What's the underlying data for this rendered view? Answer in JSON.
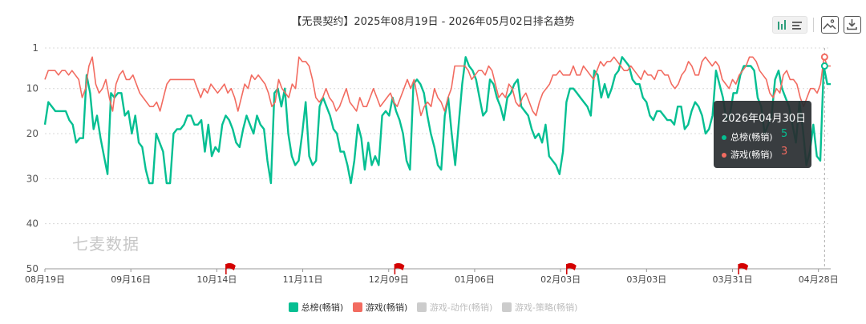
{
  "title": "【无畏契约】2025年08月19日 - 2026年05月02日排名趋势",
  "toolbar": {
    "icons": [
      "bar-view-icon",
      "image-export-icon",
      "download-icon"
    ]
  },
  "watermark": "七麦数据",
  "tooltip": {
    "date": "2026年04月30日",
    "rows": [
      {
        "label": "总榜(畅销)",
        "value": "5",
        "color": "#05bf92"
      },
      {
        "label": "游戏(畅销)",
        "value": "3",
        "color": "#f26b60"
      }
    ]
  },
  "chart_data": {
    "type": "line",
    "y_inverted": true,
    "ylim": [
      1,
      50
    ],
    "yticks": [
      "1",
      "10",
      "20",
      "30",
      "40",
      "50"
    ],
    "x_tick_labels": [
      "08月19日",
      "09月16日",
      "10月14日",
      "11月11日",
      "12月09日",
      "01月06日",
      "02月03日",
      "03月03日",
      "03月31日",
      "04月28日"
    ],
    "x_range": [
      "2025-08-19",
      "2026-05-02"
    ],
    "flags": [
      "2025-10-17",
      "2025-12-11",
      "2026-02-05",
      "2026-04-02"
    ],
    "grid": "dashed horizontal",
    "series": [
      {
        "name": "总榜(畅销)",
        "color": "#05bf92",
        "legend_active": true,
        "approximate_trend": [
          18,
          13,
          14,
          15,
          15,
          15,
          15,
          17,
          18,
          22,
          21,
          21,
          7,
          11,
          19,
          16,
          21,
          25,
          29,
          11,
          12,
          11,
          11,
          16,
          15,
          20,
          16,
          22,
          23,
          28,
          31,
          31,
          20,
          22,
          24,
          31,
          31,
          20,
          19,
          19,
          18,
          16,
          16,
          18,
          18,
          17,
          24,
          18,
          25,
          23,
          24,
          18,
          16,
          17,
          19,
          22,
          23,
          19,
          16,
          18,
          20,
          16,
          18,
          19,
          26,
          31,
          11,
          10,
          14,
          10,
          20,
          25,
          27,
          26,
          20,
          13,
          25,
          27,
          26,
          14,
          12,
          14,
          16,
          19,
          20,
          24,
          24,
          27,
          31,
          26,
          18,
          21,
          28,
          22,
          27,
          25,
          27,
          16,
          15,
          16,
          12,
          15,
          17,
          20,
          26,
          28,
          9,
          8,
          9,
          11,
          16,
          20,
          23,
          27,
          28,
          16,
          12,
          20,
          27,
          18,
          9,
          3,
          5,
          6,
          8,
          12,
          16,
          15,
          8,
          9,
          12,
          14,
          17,
          12,
          11,
          9,
          8,
          14,
          15,
          16,
          19,
          21,
          20,
          22,
          18,
          25,
          26,
          27,
          29,
          24,
          13,
          10,
          10,
          11,
          12,
          13,
          14,
          16,
          6,
          7,
          12,
          9,
          12,
          10,
          7,
          6,
          3,
          4,
          5,
          8,
          9,
          9,
          12,
          13,
          16,
          17,
          15,
          15,
          16,
          17,
          17,
          18,
          14,
          14,
          19,
          18,
          15,
          13,
          14,
          16,
          20,
          19,
          16,
          6,
          9,
          12,
          17,
          16,
          11,
          11,
          7,
          5,
          5,
          5,
          6,
          12,
          14,
          20,
          18,
          16,
          8,
          6,
          10,
          12,
          14,
          18,
          22,
          13,
          19,
          27,
          24,
          18,
          25,
          26,
          5,
          9,
          9
        ]
      },
      {
        "name": "游戏(畅销)",
        "color": "#f26b60",
        "legend_active": true,
        "approximate_trend": [
          8,
          6,
          6,
          6,
          7,
          6,
          6,
          7,
          6,
          7,
          8,
          12,
          10,
          5,
          3,
          9,
          11,
          10,
          8,
          12,
          15,
          9,
          7,
          6,
          8,
          8,
          7,
          9,
          11,
          12,
          13,
          14,
          14,
          13,
          15,
          12,
          9,
          8,
          8,
          8,
          8,
          8,
          8,
          8,
          8,
          10,
          12,
          10,
          11,
          9,
          10,
          11,
          10,
          9,
          11,
          10,
          12,
          15,
          12,
          9,
          10,
          7,
          8,
          7,
          8,
          9,
          11,
          14,
          13,
          8,
          10,
          11,
          12,
          9,
          10,
          3,
          4,
          4,
          5,
          8,
          12,
          13,
          12,
          10,
          12,
          13,
          15,
          14,
          12,
          10,
          13,
          14,
          15,
          12,
          14,
          14,
          12,
          10,
          12,
          14,
          13,
          12,
          11,
          13,
          14,
          12,
          10,
          8,
          10,
          8,
          12,
          16,
          14,
          13,
          14,
          10,
          12,
          13,
          15,
          12,
          10,
          5,
          5,
          5,
          5,
          6,
          8,
          7,
          6,
          6,
          7,
          5,
          6,
          9,
          12,
          11,
          12,
          9,
          10,
          13,
          14,
          12,
          11,
          13,
          15,
          16,
          13,
          11,
          10,
          9,
          7,
          7,
          6,
          7,
          7,
          7,
          5,
          7,
          7,
          5,
          6,
          7,
          8,
          6,
          4,
          5,
          4,
          4,
          3,
          4,
          5,
          6,
          6,
          5,
          6,
          7,
          8,
          6,
          7,
          7,
          8,
          6,
          6,
          7,
          7,
          9,
          10,
          9,
          7,
          6,
          4,
          5,
          7,
          7,
          4,
          3,
          4,
          5,
          4,
          5,
          8,
          9,
          10,
          8,
          9,
          7,
          6,
          5,
          3,
          3,
          4,
          6,
          7,
          8,
          11,
          12,
          10,
          11,
          7,
          6,
          8,
          8,
          9,
          12,
          14,
          12,
          10,
          10,
          11,
          9,
          3,
          5,
          5
        ]
      },
      {
        "name": "游戏-动作(畅销)",
        "color": "#cccccc",
        "legend_active": false
      },
      {
        "name": "游戏-策略(畅销)",
        "color": "#cccccc",
        "legend_active": false
      }
    ]
  }
}
